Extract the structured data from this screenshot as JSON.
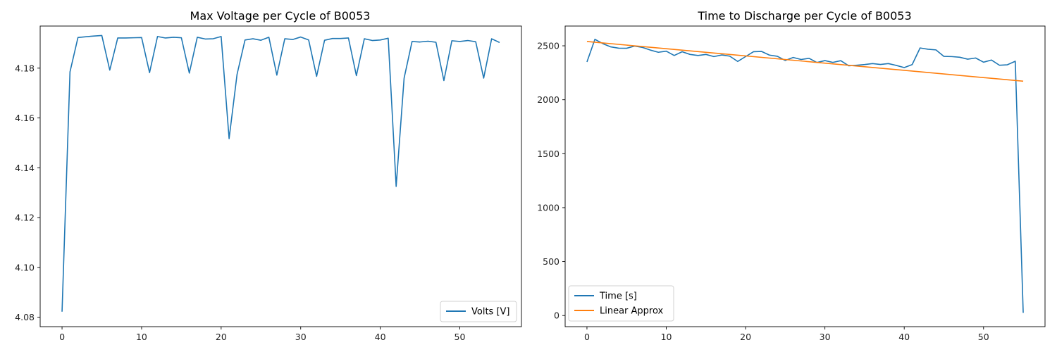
{
  "chart_data": [
    {
      "type": "line",
      "title": "Max Voltage per Cycle of B0053",
      "xlabel": "",
      "ylabel": "",
      "xlim": [
        -2.75,
        57.75
      ],
      "ylim": [
        4.0762,
        4.1969
      ],
      "xticks": [
        0,
        10,
        20,
        30,
        40,
        50
      ],
      "yticks": [
        4.08,
        4.1,
        4.12,
        4.14,
        4.16,
        4.18
      ],
      "yticklabels": [
        "4.08",
        "4.10",
        "4.12",
        "4.14",
        "4.16",
        "4.18"
      ],
      "grid": false,
      "legend_position": "lower-right",
      "series": [
        {
          "name": "Volts [V]",
          "color": "#1f77b4",
          "x": [
            0,
            1,
            2,
            3,
            4,
            5,
            6,
            7,
            8,
            9,
            10,
            11,
            12,
            13,
            14,
            15,
            16,
            17,
            18,
            19,
            20,
            21,
            22,
            23,
            24,
            25,
            26,
            27,
            28,
            29,
            30,
            31,
            32,
            33,
            34,
            35,
            36,
            37,
            38,
            39,
            40,
            41,
            42,
            43,
            44,
            45,
            46,
            47,
            48,
            49,
            50,
            51,
            52,
            53,
            54,
            55
          ],
          "y": [
            4.0822,
            4.1785,
            4.1923,
            4.1926,
            4.1929,
            4.1931,
            4.1792,
            4.1921,
            4.1921,
            4.1922,
            4.1923,
            4.1782,
            4.1927,
            4.1921,
            4.1924,
            4.1922,
            4.178,
            4.1924,
            4.1917,
            4.1918,
            4.1927,
            4.1517,
            4.1775,
            4.1913,
            4.1918,
            4.1912,
            4.1924,
            4.1772,
            4.1918,
            4.1915,
            4.1925,
            4.1913,
            4.1767,
            4.1912,
            4.1919,
            4.1919,
            4.1921,
            4.177,
            4.1918,
            4.1911,
            4.1913,
            4.192,
            4.1325,
            4.176,
            4.1907,
            4.1905,
            4.1908,
            4.1904,
            4.175,
            4.191,
            4.1907,
            4.1911,
            4.1906,
            4.176,
            4.1918,
            4.1903
          ]
        }
      ]
    },
    {
      "type": "line",
      "title": "Time to Discharge per Cycle of B0053",
      "xlabel": "",
      "ylabel": "",
      "xlim": [
        -2.75,
        57.75
      ],
      "ylim": [
        -103,
        2683
      ],
      "xticks": [
        0,
        10,
        20,
        30,
        40,
        50
      ],
      "yticks": [
        0,
        500,
        1000,
        1500,
        2000,
        2500
      ],
      "yticklabels": [
        "0",
        "500",
        "1000",
        "1500",
        "2000",
        "2500"
      ],
      "grid": false,
      "legend_position": "lower-left",
      "series": [
        {
          "name": "Time [s]",
          "color": "#1f77b4",
          "x": [
            0,
            1,
            2,
            3,
            4,
            5,
            6,
            7,
            8,
            9,
            10,
            11,
            12,
            13,
            14,
            15,
            16,
            17,
            18,
            19,
            20,
            21,
            22,
            23,
            24,
            25,
            26,
            27,
            28,
            29,
            30,
            31,
            32,
            33,
            34,
            35,
            36,
            37,
            38,
            39,
            40,
            41,
            42,
            43,
            44,
            45,
            46,
            47,
            48,
            49,
            50,
            51,
            52,
            53,
            54,
            55
          ],
          "y": [
            2350,
            2560,
            2520,
            2490,
            2478,
            2477,
            2497,
            2485,
            2460,
            2440,
            2450,
            2410,
            2445,
            2420,
            2410,
            2420,
            2400,
            2415,
            2404,
            2355,
            2400,
            2445,
            2448,
            2414,
            2403,
            2364,
            2392,
            2373,
            2384,
            2345,
            2363,
            2346,
            2362,
            2315,
            2320,
            2326,
            2335,
            2327,
            2335,
            2318,
            2298,
            2326,
            2480,
            2468,
            2462,
            2402,
            2400,
            2394,
            2376,
            2387,
            2348,
            2368,
            2320,
            2324,
            2357,
            25
          ]
        },
        {
          "name": "Linear Approx",
          "color": "#ff7f0e",
          "x": [
            0,
            55
          ],
          "y": [
            2540,
            2172
          ]
        }
      ]
    }
  ]
}
